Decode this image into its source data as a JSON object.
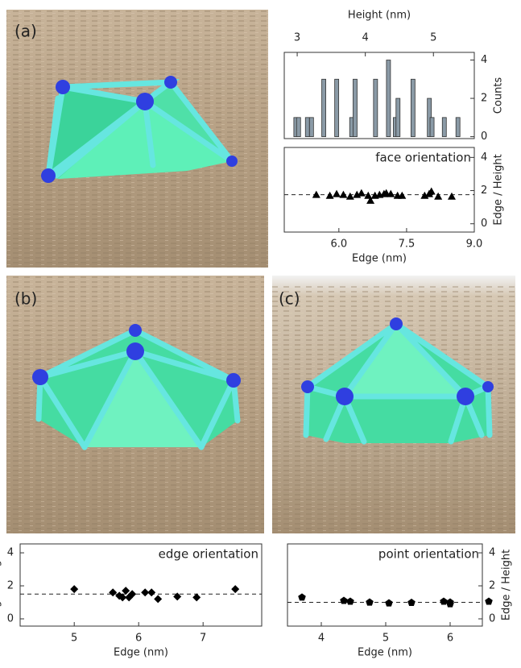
{
  "panels": [
    "(a)",
    "(b)",
    "(c)"
  ],
  "chart_data": [
    {
      "type": "bar",
      "x_label": "Height (nm)",
      "y_label": "Counts",
      "color": "#8a9aa6",
      "x": [
        2.98,
        3.02,
        3.15,
        3.21,
        3.39,
        3.58,
        3.8,
        3.85,
        4.15,
        4.34,
        4.44,
        4.48,
        4.7,
        4.94,
        4.98,
        5.16,
        5.36
      ],
      "values": [
        1,
        1,
        1,
        1,
        3,
        3,
        1,
        3,
        3,
        4,
        1,
        2,
        3,
        2,
        1,
        1,
        1
      ],
      "xlim": [
        2.81,
        5.6
      ],
      "ylim": [
        -0.1,
        4.4
      ],
      "xticks": [
        3,
        4,
        5
      ],
      "yticks": [
        0,
        2,
        4
      ],
      "x_axis_side": "top",
      "y_axis_side": "right"
    },
    {
      "type": "scatter",
      "annotation": "face orientation",
      "x_label": "Edge (nm)",
      "y_label": "Edge / Height",
      "marker": "triangle",
      "color": "#000000",
      "x": [
        5.5,
        5.8,
        5.95,
        6.1,
        6.25,
        6.4,
        6.5,
        6.65,
        6.7,
        6.8,
        6.9,
        7.0,
        7.05,
        7.15,
        7.3,
        7.4,
        7.9,
        8.0,
        8.05,
        8.2,
        8.5
      ],
      "values": [
        1.75,
        1.7,
        1.8,
        1.75,
        1.65,
        1.75,
        1.85,
        1.7,
        1.4,
        1.7,
        1.75,
        1.8,
        1.85,
        1.8,
        1.7,
        1.7,
        1.7,
        1.8,
        1.95,
        1.65,
        1.65
      ],
      "reference": 1.75,
      "xlim": [
        4.79,
        9.0
      ],
      "ylim": [
        -0.5,
        4.6
      ],
      "xticks": [
        {
          "value": 6,
          "label": "6.0"
        },
        {
          "value": 7.5,
          "label": "7.5"
        },
        {
          "value": 9,
          "label": "9.0"
        }
      ],
      "yticks": [
        0,
        2,
        4
      ],
      "x_axis_side": "bottom",
      "y_axis_side": "right"
    },
    {
      "type": "scatter",
      "annotation": "edge orientation",
      "x_label": "Edge (nm)",
      "y_label": "Edge / Height",
      "marker": "diamond",
      "color": "#000000",
      "x": [
        5.0,
        5.6,
        5.7,
        5.75,
        5.8,
        5.85,
        5.9,
        6.1,
        6.2,
        6.3,
        6.6,
        6.9,
        7.5
      ],
      "values": [
        1.8,
        1.6,
        1.4,
        1.3,
        1.7,
        1.3,
        1.5,
        1.6,
        1.6,
        1.2,
        1.35,
        1.3,
        1.8
      ],
      "reference": 1.5,
      "xlim": [
        4.16,
        7.91
      ],
      "ylim": [
        -0.44,
        4.54
      ],
      "xticks": [
        5,
        6,
        7
      ],
      "yticks": [
        0,
        2,
        4
      ],
      "x_axis_side": "bottom",
      "y_axis_side": "left"
    },
    {
      "type": "scatter",
      "annotation": "point orientation",
      "x_label": "Edge (nm)",
      "y_label": "Edge / Height",
      "marker": "pentagon",
      "color": "#000000",
      "x": [
        3.7,
        4.35,
        4.45,
        4.75,
        5.05,
        5.4,
        5.9,
        6.0,
        6.0,
        6.6
      ],
      "values": [
        1.3,
        1.1,
        1.05,
        1.0,
        0.95,
        0.98,
        1.05,
        1.0,
        0.9,
        1.05
      ],
      "reference": 1.0,
      "xlim": [
        3.475,
        6.5
      ],
      "ylim": [
        -0.44,
        4.54
      ],
      "xticks": [
        4,
        5,
        6
      ],
      "yticks": [
        0,
        2,
        4
      ],
      "x_axis_side": "bottom",
      "y_axis_side": "right"
    }
  ]
}
